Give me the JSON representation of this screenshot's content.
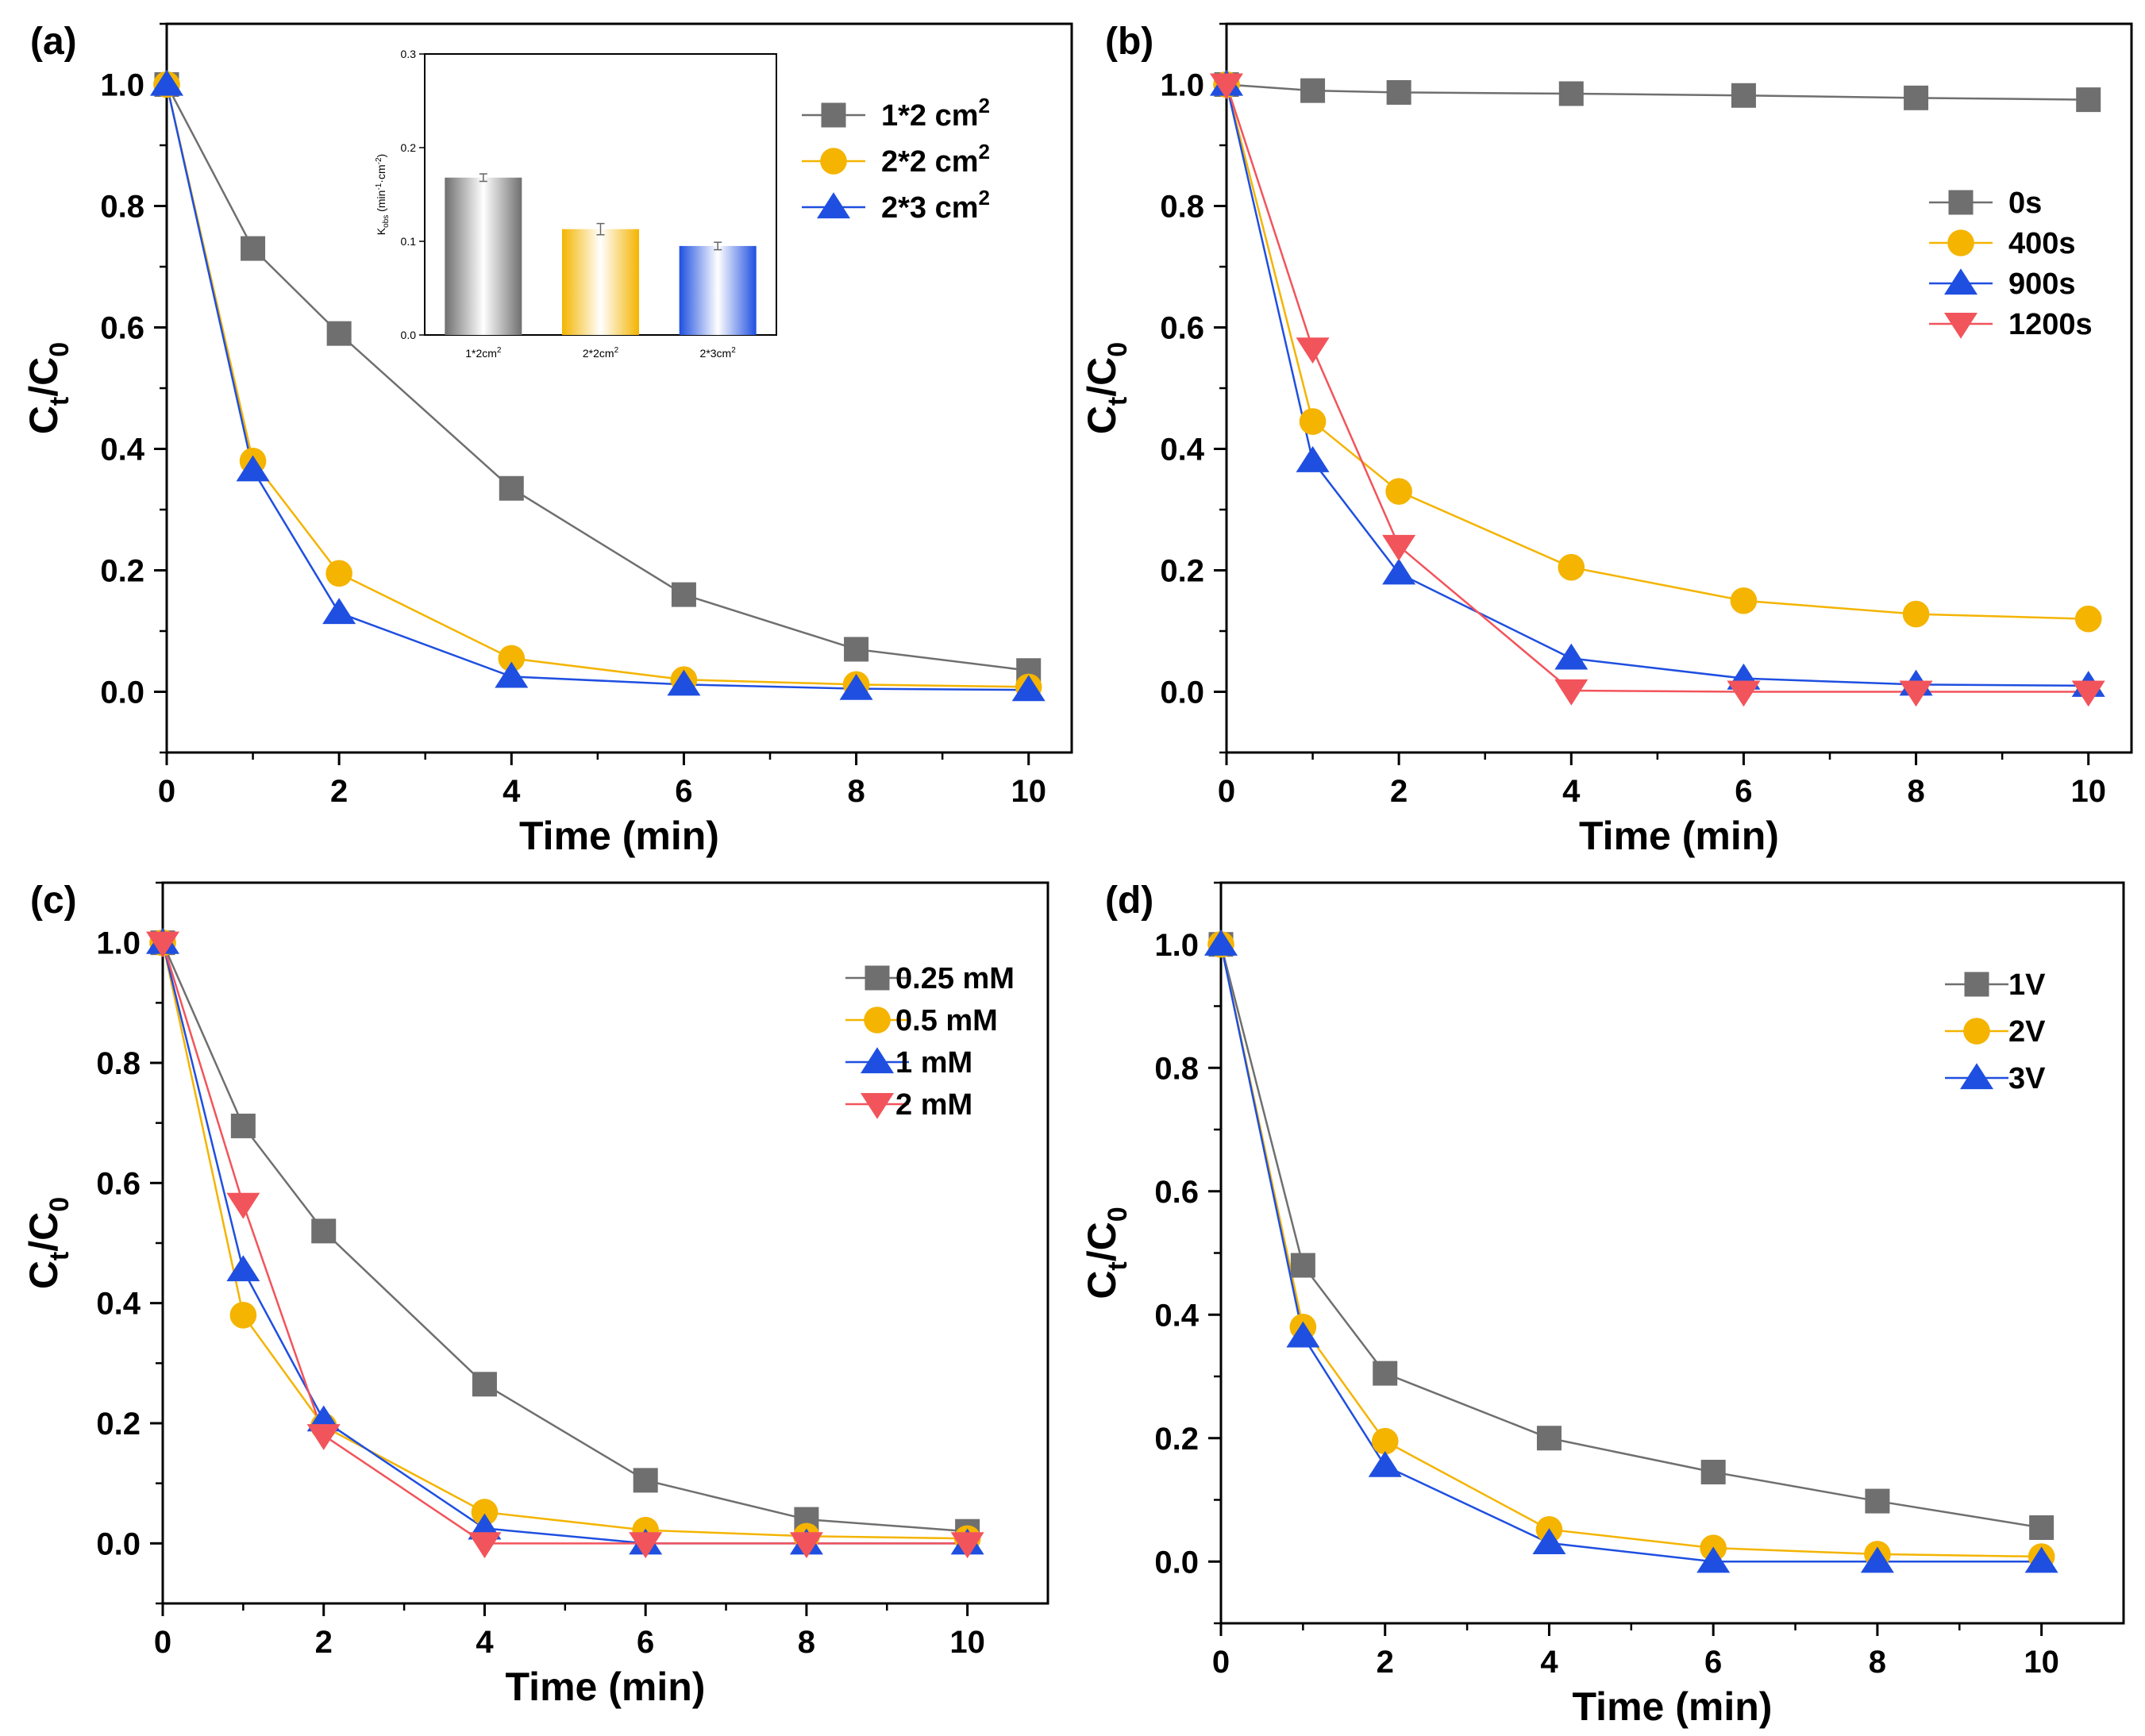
{
  "colors": {
    "gray": "#6f6f6f",
    "orange": "#f4b400",
    "blue": "#1f4fe0",
    "red": "#f2545b",
    "axis": "#000000"
  },
  "chart_data": [
    {
      "panel": "(a)",
      "type": "line",
      "xlabel": "Time (min)",
      "ylabel_main": "C",
      "ylabel_sub1": "t",
      "ylabel_mid": "/C",
      "ylabel_sub2": "0",
      "xlim": [
        0,
        10.5
      ],
      "ylim": [
        -0.1,
        1.1
      ],
      "xticks": [
        0,
        2,
        4,
        6,
        8,
        10
      ],
      "yticks": [
        0.0,
        0.2,
        0.4,
        0.6,
        0.8,
        1.0
      ],
      "ytick_labels": [
        "0.0",
        "0.2",
        "0.4",
        "0.6",
        "0.8",
        "1.0"
      ],
      "x": [
        0,
        1,
        2,
        4,
        6,
        8,
        10
      ],
      "series": [
        {
          "name": "1*2 cm",
          "sup": "2",
          "marker": "square",
          "color_key": "gray",
          "values": [
            1.0,
            0.73,
            0.59,
            0.335,
            0.16,
            0.07,
            0.035
          ]
        },
        {
          "name": "2*2 cm",
          "sup": "2",
          "marker": "circle",
          "color_key": "orange",
          "values": [
            1.0,
            0.38,
            0.195,
            0.055,
            0.02,
            0.012,
            0.008
          ]
        },
        {
          "name": "2*3 cm",
          "sup": "2",
          "marker": "triangle-up",
          "color_key": "blue",
          "values": [
            1.0,
            0.365,
            0.13,
            0.025,
            0.012,
            0.005,
            0.003
          ]
        }
      ],
      "inset": {
        "type": "bar",
        "ylabel": "K (min -1 ·cm -2)",
        "ylabel_main": "K",
        "ylabel_sub": "obs",
        "ylabel_rest": " (min",
        "ylabel_sup1": "-1",
        "ylabel_mid": "·cm",
        "ylabel_sup2": "-2",
        "ylabel_end": ")",
        "ylim": [
          0,
          0.3
        ],
        "yticks": [
          0.0,
          0.1,
          0.2,
          0.3
        ],
        "ytick_labels": [
          "0.0",
          "0.1",
          "0.2",
          "0.3"
        ],
        "categories": [
          "1*2cm",
          "2*2cm",
          "2*3cm"
        ],
        "category_sup": "2",
        "values": [
          0.168,
          0.113,
          0.095
        ],
        "errors": [
          0.004,
          0.006,
          0.004
        ],
        "color_keys": [
          "gray",
          "orange",
          "blue"
        ]
      }
    },
    {
      "panel": "(b)",
      "type": "line",
      "xlabel": "Time (min)",
      "ylabel_main": "C",
      "ylabel_sub1": "t",
      "ylabel_mid": "/C",
      "ylabel_sub2": "0",
      "xlim": [
        0,
        10.5
      ],
      "ylim": [
        -0.1,
        1.1
      ],
      "xticks": [
        0,
        2,
        4,
        6,
        8,
        10
      ],
      "yticks": [
        0.0,
        0.2,
        0.4,
        0.6,
        0.8,
        1.0
      ],
      "ytick_labels": [
        "0.0",
        "0.2",
        "0.4",
        "0.6",
        "0.8",
        "1.0"
      ],
      "x": [
        0,
        1,
        2,
        4,
        6,
        8,
        10
      ],
      "series": [
        {
          "name": "0s",
          "sup": "",
          "marker": "square",
          "color_key": "gray",
          "values": [
            1.0,
            0.99,
            0.987,
            0.985,
            0.982,
            0.978,
            0.975
          ]
        },
        {
          "name": "400s",
          "sup": "",
          "marker": "circle",
          "color_key": "orange",
          "values": [
            1.0,
            0.445,
            0.33,
            0.205,
            0.15,
            0.128,
            0.12
          ]
        },
        {
          "name": "900s",
          "sup": "",
          "marker": "triangle-up",
          "color_key": "blue",
          "values": [
            1.0,
            0.38,
            0.195,
            0.055,
            0.022,
            0.012,
            0.01
          ]
        },
        {
          "name": "1200s",
          "sup": "",
          "marker": "triangle-down",
          "color_key": "red",
          "values": [
            1.0,
            0.565,
            0.24,
            0.002,
            0.0,
            0.0,
            0.0
          ]
        }
      ]
    },
    {
      "panel": "(c)",
      "type": "line",
      "xlabel": "Time (min)",
      "ylabel_main": "C",
      "ylabel_sub1": "t",
      "ylabel_mid": "/C",
      "ylabel_sub2": "0",
      "xlim": [
        0,
        11
      ],
      "ylim": [
        -0.1,
        1.1
      ],
      "xticks": [
        0,
        2,
        4,
        6,
        8,
        10
      ],
      "yticks": [
        0.0,
        0.2,
        0.4,
        0.6,
        0.8,
        1.0
      ],
      "ytick_labels": [
        "0.0",
        "0.2",
        "0.4",
        "0.6",
        "0.8",
        "1.0"
      ],
      "x": [
        0,
        1,
        2,
        4,
        6,
        8,
        10
      ],
      "series": [
        {
          "name": "0.25 mM",
          "sup": "",
          "marker": "square",
          "color_key": "gray",
          "values": [
            1.0,
            0.695,
            0.52,
            0.265,
            0.105,
            0.04,
            0.02
          ]
        },
        {
          "name": "0.5 mM",
          "sup": "",
          "marker": "circle",
          "color_key": "orange",
          "values": [
            1.0,
            0.38,
            0.195,
            0.052,
            0.022,
            0.012,
            0.008
          ]
        },
        {
          "name": "1 mM",
          "sup": "",
          "marker": "triangle-up",
          "color_key": "blue",
          "values": [
            1.0,
            0.455,
            0.205,
            0.025,
            0.0,
            0.0,
            0.0
          ]
        },
        {
          "name": "2 mM",
          "sup": "",
          "marker": "triangle-down",
          "color_key": "red",
          "values": [
            1.0,
            0.565,
            0.18,
            0.0,
            0.0,
            0.0,
            0.0
          ]
        }
      ]
    },
    {
      "panel": "(d)",
      "type": "line",
      "xlabel": "Time (min)",
      "ylabel_main": "C",
      "ylabel_sub1": "t",
      "ylabel_mid": "/C",
      "ylabel_sub2": "0",
      "xlim": [
        0,
        11
      ],
      "ylim": [
        -0.1,
        1.1
      ],
      "xticks": [
        0,
        2,
        4,
        6,
        8,
        10
      ],
      "yticks": [
        0.0,
        0.2,
        0.4,
        0.6,
        0.8,
        1.0
      ],
      "ytick_labels": [
        "0.0",
        "0.2",
        "0.4",
        "0.6",
        "0.8",
        "1.0"
      ],
      "x": [
        0,
        1,
        2,
        4,
        6,
        8,
        10
      ],
      "series": [
        {
          "name": "1V",
          "sup": "",
          "marker": "square",
          "color_key": "gray",
          "values": [
            1.0,
            0.48,
            0.305,
            0.2,
            0.145,
            0.098,
            0.055
          ]
        },
        {
          "name": "2V",
          "sup": "",
          "marker": "circle",
          "color_key": "orange",
          "values": [
            1.0,
            0.38,
            0.195,
            0.052,
            0.022,
            0.012,
            0.008
          ]
        },
        {
          "name": "3V",
          "sup": "",
          "marker": "triangle-up",
          "color_key": "blue",
          "values": [
            1.0,
            0.365,
            0.155,
            0.03,
            0.0,
            0.0,
            0.0
          ]
        }
      ]
    }
  ]
}
